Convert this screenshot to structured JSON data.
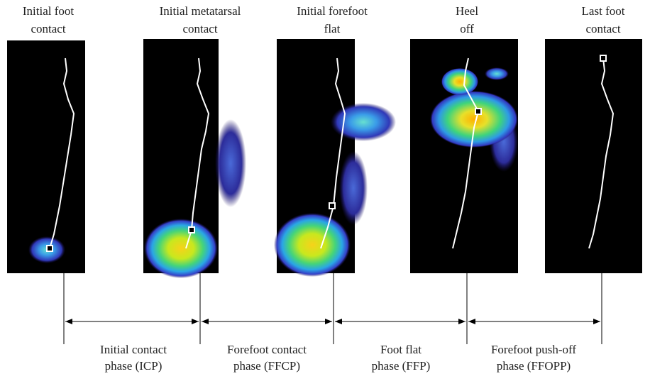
{
  "panels": [
    {
      "label": [
        "Initial foot",
        "contact"
      ]
    },
    {
      "label": [
        "Initial metatarsal",
        "contact"
      ]
    },
    {
      "label": [
        "Initial forefoot",
        "flat"
      ]
    },
    {
      "label": [
        "Heel",
        "off"
      ]
    },
    {
      "label": [
        "Last foot",
        "contact"
      ]
    }
  ],
  "phases": [
    {
      "label": [
        "Initial contact",
        "phase (ICP)"
      ]
    },
    {
      "label": [
        "Forefoot contact",
        "phase (FFCP)"
      ]
    },
    {
      "label": [
        "Foot flat",
        "phase (FFP)"
      ]
    },
    {
      "label": [
        "Forefoot push-off",
        "phase (FFOPP)"
      ]
    }
  ]
}
